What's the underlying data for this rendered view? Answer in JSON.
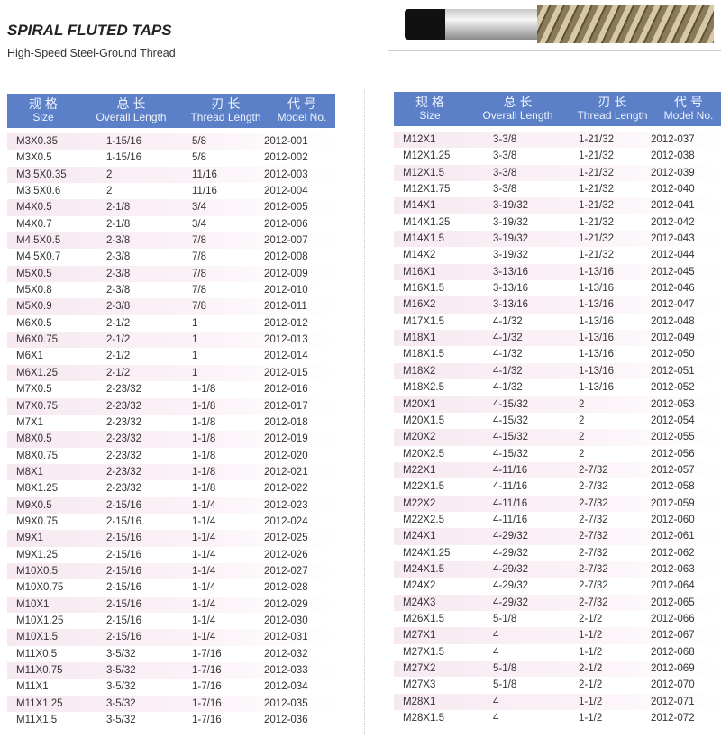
{
  "title": "SPIRAL FLUTED TAPS",
  "subtitle": "High-Speed Steel-Ground Thread",
  "header_color": "#5b80c7",
  "columns": [
    {
      "cn": "规 格",
      "en": "Size"
    },
    {
      "cn": "总 长",
      "en": "Overall Length"
    },
    {
      "cn": "刃 长",
      "en": "Thread Length"
    },
    {
      "cn": "代 号",
      "en": "Model No."
    }
  ],
  "left_rows": [
    [
      "M3X0.35",
      "1-15/16",
      "5/8",
      "2012-001"
    ],
    [
      "M3X0.5",
      "1-15/16",
      "5/8",
      "2012-002"
    ],
    [
      "M3.5X0.35",
      "2",
      "11/16",
      "2012-003"
    ],
    [
      "M3.5X0.6",
      "2",
      "11/16",
      "2012-004"
    ],
    [
      "M4X0.5",
      "2-1/8",
      "3/4",
      "2012-005"
    ],
    [
      "M4X0.7",
      "2-1/8",
      "3/4",
      "2012-006"
    ],
    [
      "M4.5X0.5",
      "2-3/8",
      "7/8",
      "2012-007"
    ],
    [
      "M4.5X0.7",
      "2-3/8",
      "7/8",
      "2012-008"
    ],
    [
      "M5X0.5",
      "2-3/8",
      "7/8",
      "2012-009"
    ],
    [
      "M5X0.8",
      "2-3/8",
      "7/8",
      "2012-010"
    ],
    [
      "M5X0.9",
      "2-3/8",
      "7/8",
      "2012-011"
    ],
    [
      "M6X0.5",
      "2-1/2",
      "1",
      "2012-012"
    ],
    [
      "M6X0.75",
      "2-1/2",
      "1",
      "2012-013"
    ],
    [
      "M6X1",
      "2-1/2",
      "1",
      "2012-014"
    ],
    [
      "M6X1.25",
      "2-1/2",
      "1",
      "2012-015"
    ],
    [
      "M7X0.5",
      "2-23/32",
      "1-1/8",
      "2012-016"
    ],
    [
      "M7X0.75",
      "2-23/32",
      "1-1/8",
      "2012-017"
    ],
    [
      "M7X1",
      "2-23/32",
      "1-1/8",
      "2012-018"
    ],
    [
      "M8X0.5",
      "2-23/32",
      "1-1/8",
      "2012-019"
    ],
    [
      "M8X0.75",
      "2-23/32",
      "1-1/8",
      "2012-020"
    ],
    [
      "M8X1",
      "2-23/32",
      "1-1/8",
      "2012-021"
    ],
    [
      "M8X1.25",
      "2-23/32",
      "1-1/8",
      "2012-022"
    ],
    [
      "M9X0.5",
      "2-15/16",
      "1-1/4",
      "2012-023"
    ],
    [
      "M9X0.75",
      "2-15/16",
      "1-1/4",
      "2012-024"
    ],
    [
      "M9X1",
      "2-15/16",
      "1-1/4",
      "2012-025"
    ],
    [
      "M9X1.25",
      "2-15/16",
      "1-1/4",
      "2012-026"
    ],
    [
      "M10X0.5",
      "2-15/16",
      "1-1/4",
      "2012-027"
    ],
    [
      "M10X0.75",
      "2-15/16",
      "1-1/4",
      "2012-028"
    ],
    [
      "M10X1",
      "2-15/16",
      "1-1/4",
      "2012-029"
    ],
    [
      "M10X1.25",
      "2-15/16",
      "1-1/4",
      "2012-030"
    ],
    [
      "M10X1.5",
      "2-15/16",
      "1-1/4",
      "2012-031"
    ],
    [
      "M11X0.5",
      "3-5/32",
      "1-7/16",
      "2012-032"
    ],
    [
      "M11X0.75",
      "3-5/32",
      "1-7/16",
      "2012-033"
    ],
    [
      "M11X1",
      "3-5/32",
      "1-7/16",
      "2012-034"
    ],
    [
      "M11X1.25",
      "3-5/32",
      "1-7/16",
      "2012-035"
    ],
    [
      "M11X1.5",
      "3-5/32",
      "1-7/16",
      "2012-036"
    ]
  ],
  "right_rows": [
    [
      "M12X1",
      "3-3/8",
      "1-21/32",
      "2012-037"
    ],
    [
      "M12X1.25",
      "3-3/8",
      "1-21/32",
      "2012-038"
    ],
    [
      "M12X1.5",
      "3-3/8",
      "1-21/32",
      "2012-039"
    ],
    [
      "M12X1.75",
      "3-3/8",
      "1-21/32",
      "2012-040"
    ],
    [
      "M14X1",
      "3-19/32",
      "1-21/32",
      "2012-041"
    ],
    [
      "M14X1.25",
      "3-19/32",
      "1-21/32",
      "2012-042"
    ],
    [
      "M14X1.5",
      "3-19/32",
      "1-21/32",
      "2012-043"
    ],
    [
      "M14X2",
      "3-19/32",
      "1-21/32",
      "2012-044"
    ],
    [
      "M16X1",
      "3-13/16",
      "1-13/16",
      "2012-045"
    ],
    [
      "M16X1.5",
      "3-13/16",
      "1-13/16",
      "2012-046"
    ],
    [
      "M16X2",
      "3-13/16",
      "1-13/16",
      "2012-047"
    ],
    [
      "M17X1.5",
      "4-1/32",
      "1-13/16",
      "2012-048"
    ],
    [
      "M18X1",
      "4-1/32",
      "1-13/16",
      "2012-049"
    ],
    [
      "M18X1.5",
      "4-1/32",
      "1-13/16",
      "2012-050"
    ],
    [
      "M18X2",
      "4-1/32",
      "1-13/16",
      "2012-051"
    ],
    [
      "M18X2.5",
      "4-1/32",
      "1-13/16",
      "2012-052"
    ],
    [
      "M20X1",
      "4-15/32",
      "2",
      "2012-053"
    ],
    [
      "M20X1.5",
      "4-15/32",
      "2",
      "2012-054"
    ],
    [
      "M20X2",
      "4-15/32",
      "2",
      "2012-055"
    ],
    [
      "M20X2.5",
      "4-15/32",
      "2",
      "2012-056"
    ],
    [
      "M22X1",
      "4-11/16",
      "2-7/32",
      "2012-057"
    ],
    [
      "M22X1.5",
      "4-11/16",
      "2-7/32",
      "2012-058"
    ],
    [
      "M22X2",
      "4-11/16",
      "2-7/32",
      "2012-059"
    ],
    [
      "M22X2.5",
      "4-11/16",
      "2-7/32",
      "2012-060"
    ],
    [
      "M24X1",
      "4-29/32",
      "2-7/32",
      "2012-061"
    ],
    [
      "M24X1.25",
      "4-29/32",
      "2-7/32",
      "2012-062"
    ],
    [
      "M24X1.5",
      "4-29/32",
      "2-7/32",
      "2012-063"
    ],
    [
      "M24X2",
      "4-29/32",
      "2-7/32",
      "2012-064"
    ],
    [
      "M24X3",
      "4-29/32",
      "2-7/32",
      "2012-065"
    ],
    [
      "M26X1.5",
      "5-1/8",
      "2-1/2",
      "2012-066"
    ],
    [
      "M27X1",
      "4",
      "1-1/2",
      "2012-067"
    ],
    [
      "M27X1.5",
      "4",
      "1-1/2",
      "2012-068"
    ],
    [
      "M27X2",
      "5-1/8",
      "2-1/2",
      "2012-069"
    ],
    [
      "M27X3",
      "5-1/8",
      "2-1/2",
      "2012-070"
    ],
    [
      "M28X1",
      "4",
      "1-1/2",
      "2012-071"
    ],
    [
      "M28X1.5",
      "4",
      "1-1/2",
      "2012-072"
    ]
  ]
}
